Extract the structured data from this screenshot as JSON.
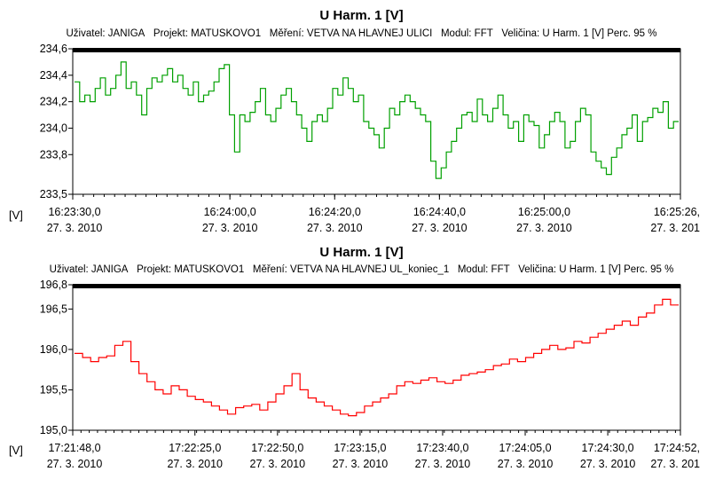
{
  "chart_data": [
    {
      "type": "line",
      "title": "U Harm. 1 [V]",
      "info": {
        "user": "Uživatel: JANIGA",
        "project": "Projekt: MATUSKOVO1",
        "measurement": "Měření: VETVA NA HLAVNEJ ULICI",
        "module": "Modul: FFT",
        "quantity": "Veličina: U Harm. 1 [V] Perc. 95 %"
      },
      "ylabel": "[V]",
      "ylim": [
        233.5,
        234.6
      ],
      "yticks": [
        {
          "value": 234.6,
          "label": "234,6"
        },
        {
          "value": 234.4,
          "label": "234,4"
        },
        {
          "value": 234.2,
          "label": "234,2"
        },
        {
          "value": 234.0,
          "label": "234,0"
        },
        {
          "value": 233.8,
          "label": "233,8"
        },
        {
          "value": 233.5,
          "label": "233,5"
        }
      ],
      "xlim": [
        0,
        116
      ],
      "xticks": [
        {
          "t": 0,
          "time": "16:23:30,0",
          "date": "27. 3. 2010"
        },
        {
          "t": 30,
          "time": "16:24:00,0",
          "date": "27. 3. 2010"
        },
        {
          "t": 50,
          "time": "16:24:20,0",
          "date": "27. 3. 2010"
        },
        {
          "t": 70,
          "time": "16:24:40,0",
          "date": "27. 3. 2010"
        },
        {
          "t": 90,
          "time": "16:25:00,0",
          "date": "27. 3. 2010"
        },
        {
          "t": 116,
          "time": "16:25:26,",
          "date": "27. 3. 201"
        }
      ],
      "color": "#00a000",
      "values": [
        234.35,
        234.2,
        234.25,
        234.2,
        234.3,
        234.38,
        234.25,
        234.3,
        234.4,
        234.5,
        234.3,
        234.35,
        234.25,
        234.1,
        234.3,
        234.38,
        234.35,
        234.4,
        234.45,
        234.35,
        234.4,
        234.3,
        234.25,
        234.35,
        234.2,
        234.25,
        234.28,
        234.35,
        234.45,
        234.48,
        234.1,
        233.82,
        234.1,
        234.05,
        234.12,
        234.2,
        234.3,
        234.1,
        234.05,
        234.15,
        234.25,
        234.3,
        234.2,
        234.1,
        234.0,
        233.9,
        234.05,
        234.1,
        234.05,
        234.15,
        234.3,
        234.25,
        234.38,
        234.3,
        234.2,
        234.25,
        234.05,
        234.0,
        233.95,
        233.85,
        234.0,
        234.15,
        234.1,
        234.2,
        234.25,
        234.2,
        234.15,
        234.1,
        234.05,
        233.75,
        233.62,
        233.7,
        233.82,
        233.9,
        234.0,
        234.1,
        234.12,
        234.05,
        234.22,
        234.1,
        234.05,
        234.15,
        234.25,
        234.1,
        234.0,
        234.05,
        233.9,
        234.1,
        234.05,
        234.02,
        233.85,
        233.95,
        234.05,
        234.12,
        234.05,
        233.85,
        233.9,
        234.05,
        234.15,
        234.1,
        233.82,
        233.75,
        233.7,
        233.65,
        233.78,
        233.85,
        233.95,
        234.0,
        234.1,
        233.9,
        234.05,
        234.08,
        234.15,
        234.12,
        234.2,
        234.0,
        234.05
      ]
    },
    {
      "type": "line",
      "title": "U Harm. 1 [V]",
      "info": {
        "user": "Uživatel: JANIGA",
        "project": "Projekt: MATUSKOVO1",
        "measurement": "Měření: VETVA NA HLAVNEJ UL_koniec_1",
        "module": "Modul: FFT",
        "quantity": "Veličina: U Harm. 1 [V] Perc. 95 %"
      },
      "ylabel": "[V]",
      "ylim": [
        195.0,
        196.8
      ],
      "yticks": [
        {
          "value": 196.8,
          "label": "196,8"
        },
        {
          "value": 196.5,
          "label": "196,5"
        },
        {
          "value": 196.0,
          "label": "196,0"
        },
        {
          "value": 195.5,
          "label": "195,5"
        },
        {
          "value": 195.0,
          "label": "195,0"
        }
      ],
      "xlim": [
        0,
        184
      ],
      "xticks": [
        {
          "t": 0,
          "time": "17:21:48,0",
          "date": "27. 3. 2010"
        },
        {
          "t": 37,
          "time": "17:22:25,0",
          "date": "27. 3. 2010"
        },
        {
          "t": 62,
          "time": "17:22:50,0",
          "date": "27. 3. 2010"
        },
        {
          "t": 87,
          "time": "17:23:15,0",
          "date": "27. 3. 2010"
        },
        {
          "t": 112,
          "time": "17:23:40,0",
          "date": "27. 3. 2010"
        },
        {
          "t": 137,
          "time": "17:24:05,0",
          "date": "27. 3. 2010"
        },
        {
          "t": 162,
          "time": "17:24:30,0",
          "date": "27. 3. 2010"
        },
        {
          "t": 184,
          "time": "17:24:52,",
          "date": "27. 3. 201"
        }
      ],
      "color": "#ff0000",
      "values": [
        195.95,
        195.9,
        195.85,
        195.9,
        195.92,
        196.05,
        196.1,
        195.85,
        195.7,
        195.6,
        195.5,
        195.45,
        195.55,
        195.5,
        195.42,
        195.38,
        195.35,
        195.3,
        195.25,
        195.2,
        195.28,
        195.3,
        195.32,
        195.25,
        195.35,
        195.45,
        195.55,
        195.7,
        195.5,
        195.4,
        195.35,
        195.3,
        195.25,
        195.2,
        195.18,
        195.22,
        195.3,
        195.35,
        195.4,
        195.45,
        195.55,
        195.6,
        195.58,
        195.62,
        195.65,
        195.6,
        195.58,
        195.62,
        195.68,
        195.7,
        195.72,
        195.75,
        195.8,
        195.82,
        195.88,
        195.85,
        195.9,
        195.95,
        196.0,
        196.05,
        196.0,
        196.02,
        196.1,
        196.08,
        196.15,
        196.2,
        196.25,
        196.3,
        196.35,
        196.3,
        196.4,
        196.45,
        196.55,
        196.62,
        196.55
      ]
    }
  ]
}
